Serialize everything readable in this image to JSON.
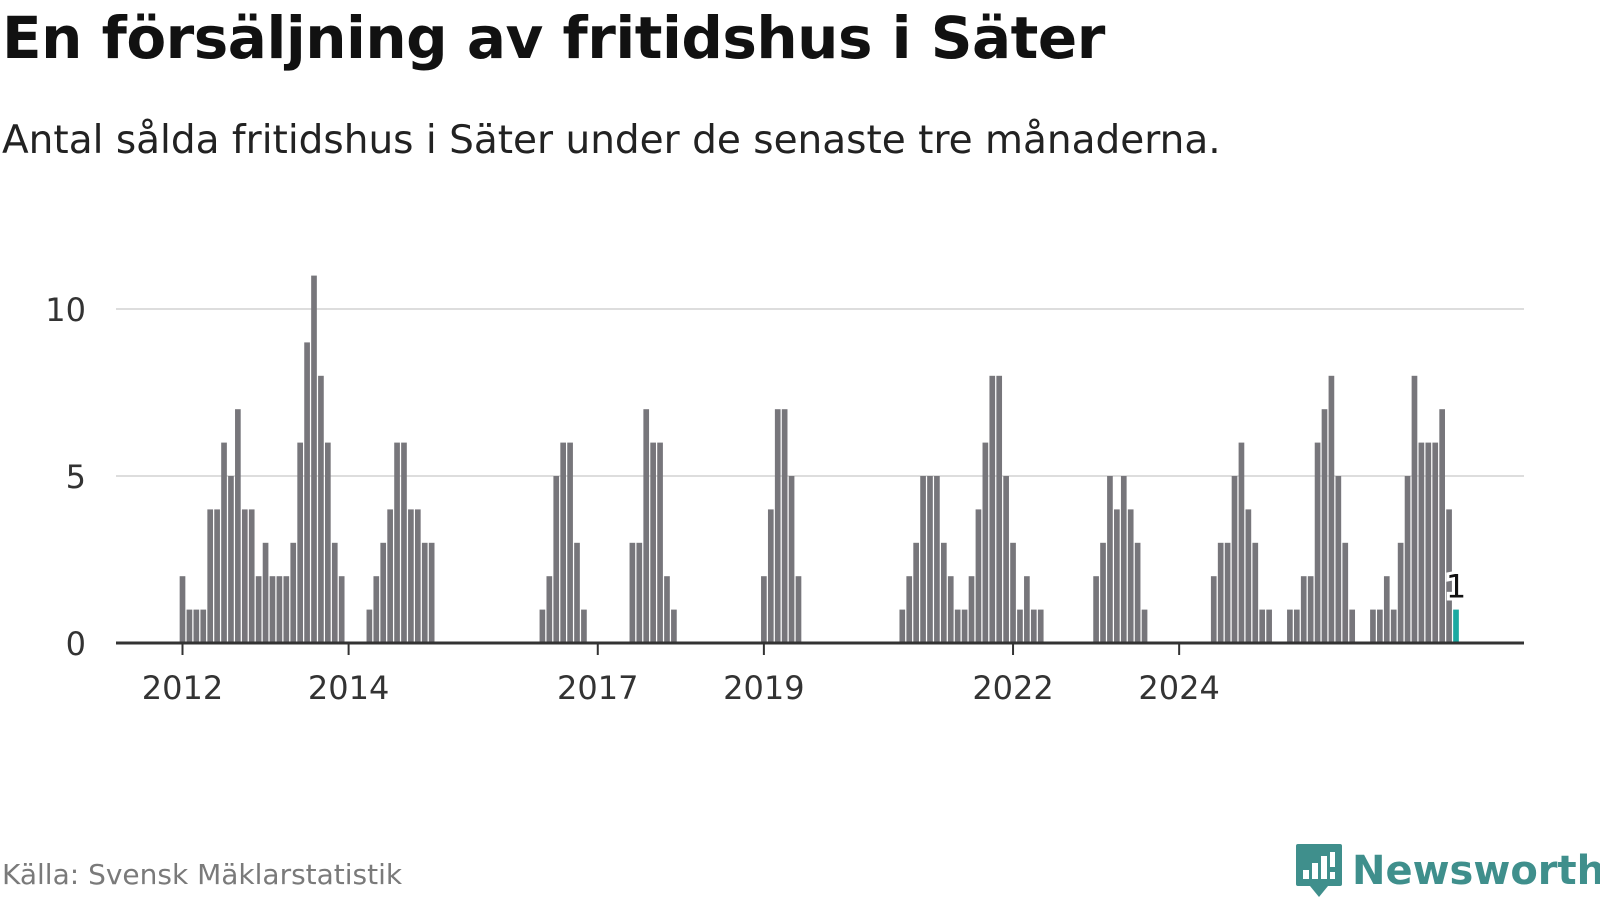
{
  "header": {
    "title": "En försäljning av fritidshus i Säter",
    "subtitle": "Antal sålda fritidshus i Säter under de senaste tre månaderna."
  },
  "footer": {
    "source": "Källa: Svensk Mäklarstatistik",
    "brand": "Newsworthy",
    "brand_icon": "bar-chart-speech-bubble-icon"
  },
  "colors": {
    "bar": "#77767b",
    "highlight": "#1aa9a1",
    "grid": "#dddddd",
    "axis": "#333333",
    "brand": "#3f8f8c"
  },
  "chart_data": {
    "type": "bar",
    "title": "En försäljning av fritidshus i Säter",
    "subtitle": "Antal sålda fritidshus i Säter under de senaste tre månaderna.",
    "xlabel": "",
    "ylabel": "",
    "ylim": [
      0,
      11.5
    ],
    "yticks": [
      0,
      5,
      10
    ],
    "xticks": [
      "2012",
      "2014",
      "2017",
      "2019",
      "2022",
      "2024"
    ],
    "grid": true,
    "highlight_label": "1",
    "series": [
      {
        "color": "#77767b",
        "highlight_color": "#1aa9a1",
        "highlight_last": true,
        "values": [
          2,
          1,
          1,
          1,
          4,
          4,
          6,
          5,
          7,
          4,
          4,
          2,
          3,
          2,
          2,
          2,
          3,
          6,
          9,
          11,
          8,
          6,
          3,
          2,
          0,
          0,
          0,
          1,
          2,
          3,
          4,
          6,
          6,
          4,
          4,
          3,
          3,
          0,
          0,
          0,
          0,
          0,
          0,
          0,
          0,
          0,
          0,
          0,
          0,
          0,
          0,
          0,
          1,
          2,
          5,
          6,
          6,
          3,
          1,
          0,
          0,
          0,
          0,
          0,
          0,
          3,
          3,
          7,
          6,
          6,
          2,
          1,
          0,
          0,
          0,
          0,
          0,
          0,
          0,
          0,
          0,
          0,
          0,
          0,
          2,
          4,
          7,
          7,
          5,
          2,
          0,
          0,
          0,
          0,
          0,
          0,
          0,
          0,
          0,
          0,
          0,
          0,
          0,
          0,
          1,
          2,
          3,
          5,
          5,
          5,
          3,
          2,
          1,
          1,
          2,
          4,
          6,
          8,
          8,
          5,
          3,
          1,
          2,
          1,
          1,
          0,
          0,
          0,
          0,
          0,
          0,
          0,
          2,
          3,
          5,
          4,
          5,
          4,
          3,
          1,
          0,
          0,
          0,
          0,
          0,
          0,
          0,
          0,
          0,
          2,
          3,
          3,
          5,
          6,
          4,
          3,
          1,
          1,
          0,
          0,
          1,
          1,
          2,
          2,
          6,
          7,
          8,
          5,
          3,
          1,
          0,
          0,
          1,
          1,
          2,
          1,
          3,
          5,
          8,
          6,
          6,
          6,
          7,
          4,
          1
        ]
      }
    ]
  }
}
